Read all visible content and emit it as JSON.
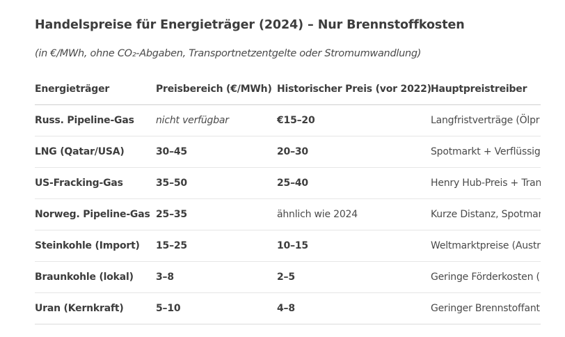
{
  "title": "Handelspreise für Energieträger (2024) – Nur Brennstoffkosten",
  "subtitle": "(in €/MWh, ohne CO₂-Abgaben, Transportnetzentgelte oder Stromumwandlung)",
  "table": {
    "headers": [
      "Energieträger",
      "Preisbereich (€/MWh)",
      "Historischer Preis (vor 2022)",
      "Hauptpreistreiber"
    ],
    "rows": [
      {
        "carrier": "Russ. Pipeline-Gas",
        "range": "nicht verfügbar",
        "range_bold": false,
        "historical": "€15–20",
        "historical_bold": true,
        "driver": "Langfristverträge (Ölpr"
      },
      {
        "carrier": "LNG (Qatar/USA)",
        "range": "30–45",
        "range_bold": true,
        "historical": "20–30",
        "historical_bold": true,
        "driver": "Spotmarkt + Verflüssigu"
      },
      {
        "carrier": "US-Fracking-Gas",
        "range": "35–50",
        "range_bold": true,
        "historical": "25–40",
        "historical_bold": true,
        "driver": "Henry Hub-Preis + Tran"
      },
      {
        "carrier": "Norweg. Pipeline-Gas",
        "range": "25–35",
        "range_bold": true,
        "historical": "ähnlich wie 2024",
        "historical_bold": false,
        "driver": "Kurze Distanz, Spotmar"
      },
      {
        "carrier": "Steinkohle (Import)",
        "range": "15–25",
        "range_bold": true,
        "historical": "10–15",
        "historical_bold": true,
        "driver": "Weltmarktpreise (Austr"
      },
      {
        "carrier": "Braunkohle (lokal)",
        "range": "3–8",
        "range_bold": true,
        "historical": "2–5",
        "historical_bold": true,
        "driver": "Geringe Förderkosten ("
      },
      {
        "carrier": "Uran (Kernkraft)",
        "range": "5–10",
        "range_bold": true,
        "historical": "4–8",
        "historical_bold": true,
        "driver": "Geringer Brennstoffant"
      }
    ]
  }
}
